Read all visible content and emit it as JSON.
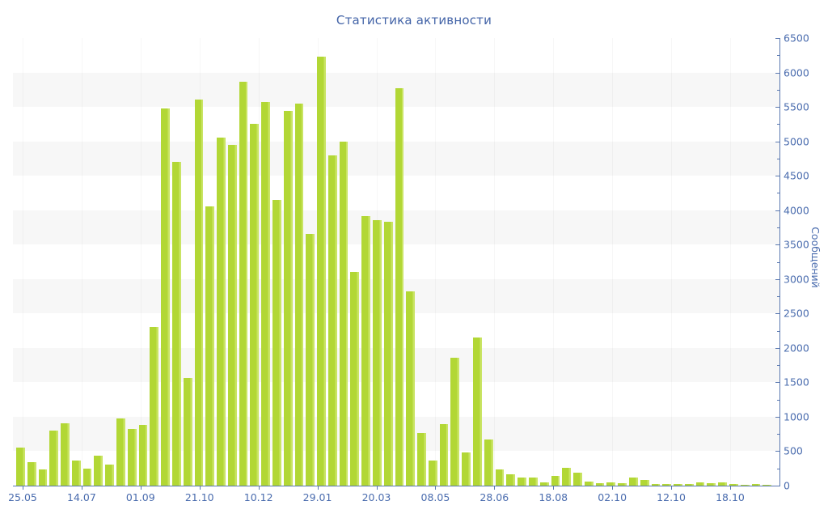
{
  "chart_data": {
    "type": "bar",
    "title": "Статистика активности",
    "ylabel": "Сообщений",
    "xlabel": "",
    "ylim": [
      0,
      6500
    ],
    "y_major_step": 500,
    "y_minor_step": 250,
    "grid": "horizontal alternating gray bands every 500 units",
    "legend_position": "none",
    "y_tick_labels": [
      "0",
      "500",
      "1000",
      "1500",
      "2000",
      "2500",
      "3000",
      "3500",
      "4000",
      "4500",
      "5000",
      "5500",
      "6000",
      "6500"
    ],
    "x_tick_labels": [
      "25.05",
      "14.07",
      "01.09",
      "21.10",
      "10.12",
      "29.01",
      "20.03",
      "08.05",
      "28.06",
      "18.08",
      "02.10",
      "12.10",
      "18.10"
    ],
    "values": [
      550,
      340,
      240,
      800,
      905,
      360,
      245,
      430,
      300,
      980,
      820,
      885,
      2300,
      5480,
      4700,
      1560,
      5610,
      4060,
      5050,
      4950,
      5860,
      5250,
      5570,
      4150,
      5440,
      5550,
      3650,
      6230,
      4800,
      4990,
      3100,
      3920,
      3850,
      3830,
      5770,
      2820,
      760,
      360,
      890,
      1860,
      480,
      2150,
      670,
      240,
      160,
      120,
      120,
      50,
      145,
      255,
      185,
      55,
      30,
      45,
      35,
      120,
      80,
      20,
      25,
      20,
      25,
      45,
      35,
      45,
      18,
      15,
      18,
      15
    ]
  },
  "colors": {
    "bar": "#b2d735",
    "bar_highlight": "#c9e464",
    "axis": "#5a78b0",
    "tick_text": "#4a6cae",
    "title_text": "#4263a7",
    "band": "#f7f7f7",
    "background": "#ffffff"
  }
}
